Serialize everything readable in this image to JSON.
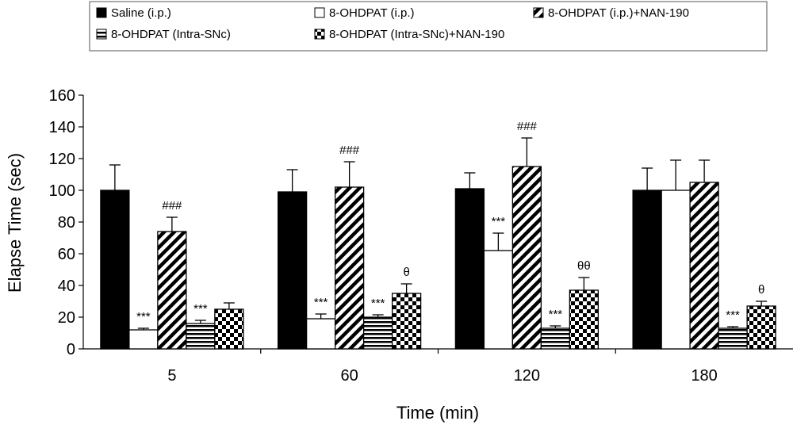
{
  "chart_data": {
    "type": "bar",
    "xlabel": "Time (min)",
    "ylabel": "Elapse Time (sec)",
    "ylim": [
      0,
      160
    ],
    "yticks": [
      0,
      20,
      40,
      60,
      80,
      100,
      120,
      140,
      160
    ],
    "categories": [
      "5",
      "60",
      "120",
      "180"
    ],
    "legend_position": "top",
    "series": [
      {
        "name": "Saline (i.p.)",
        "pattern": "solid",
        "values": [
          100,
          99,
          101,
          100
        ],
        "errors": [
          16,
          14,
          10,
          14
        ],
        "annotations": [
          "",
          "",
          "",
          ""
        ]
      },
      {
        "name": "8-OHDPAT (i.p.)",
        "pattern": "white",
        "values": [
          12,
          19,
          62,
          100
        ],
        "errors": [
          1,
          3,
          11,
          19
        ],
        "annotations": [
          "***",
          "***",
          "***",
          ""
        ]
      },
      {
        "name": "8-OHDPAT (i.p.)+NAN-190",
        "pattern": "diagonal",
        "values": [
          74,
          102,
          115,
          105
        ],
        "errors": [
          9,
          16,
          18,
          14
        ],
        "annotations": [
          "###",
          "###",
          "###",
          ""
        ]
      },
      {
        "name": "8-OHDPAT (Intra-SNc)",
        "pattern": "horizontal",
        "values": [
          16,
          20,
          13,
          13
        ],
        "errors": [
          2,
          1.5,
          1.5,
          1
        ],
        "annotations": [
          "***",
          "***",
          "***",
          "***"
        ]
      },
      {
        "name": "8-OHDPAT (Intra-SNc)+NAN-190",
        "pattern": "checker",
        "values": [
          25,
          35,
          37,
          27
        ],
        "errors": [
          4,
          6,
          8,
          3
        ],
        "annotations": [
          "",
          "θ",
          "θθ",
          "θ"
        ]
      }
    ],
    "colors": {
      "bar_stroke": "#000000",
      "fill_dark": "#000000",
      "fill_light": "#ffffff"
    }
  }
}
